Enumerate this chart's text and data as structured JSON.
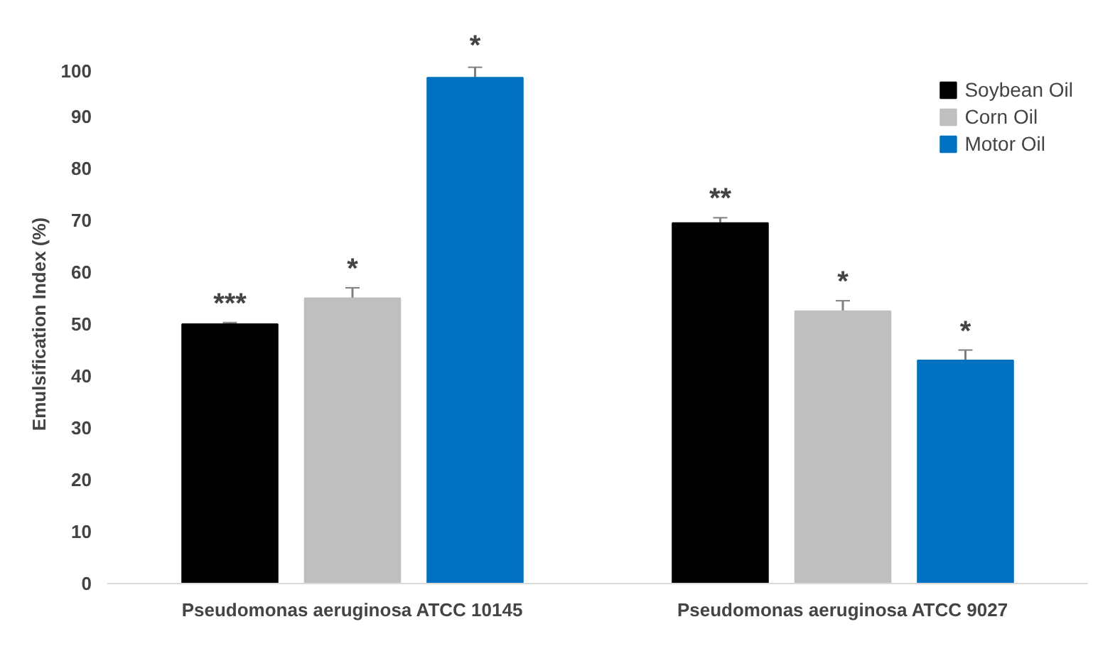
{
  "chart_data": {
    "type": "bar",
    "ylabel": "Emulsification Index (%)",
    "categories": [
      "Pseudomonas aeruginosa ATCC 10145",
      "Pseudomonas aeruginosa ATCC 9027"
    ],
    "series": [
      {
        "name": "Soybean Oil",
        "color": "#000000",
        "values": [
          50,
          69.5
        ],
        "errors": [
          0.3,
          1
        ]
      },
      {
        "name": "Corn Oil",
        "color": "#bfbfbf",
        "values": [
          55,
          52.5
        ],
        "errors": [
          2,
          2
        ]
      },
      {
        "name": "Motor Oil",
        "color": "#0070c0",
        "values": [
          97.5,
          43
        ],
        "errors": [
          2,
          2
        ]
      }
    ],
    "ylim": [
      0,
      100
    ],
    "yticks": [
      0,
      10,
      20,
      30,
      40,
      50,
      60,
      70,
      80,
      90,
      100
    ],
    "grid": false,
    "legend": "top right",
    "annotations": [
      "***",
      "*",
      "*",
      "**",
      "*",
      "*"
    ]
  }
}
